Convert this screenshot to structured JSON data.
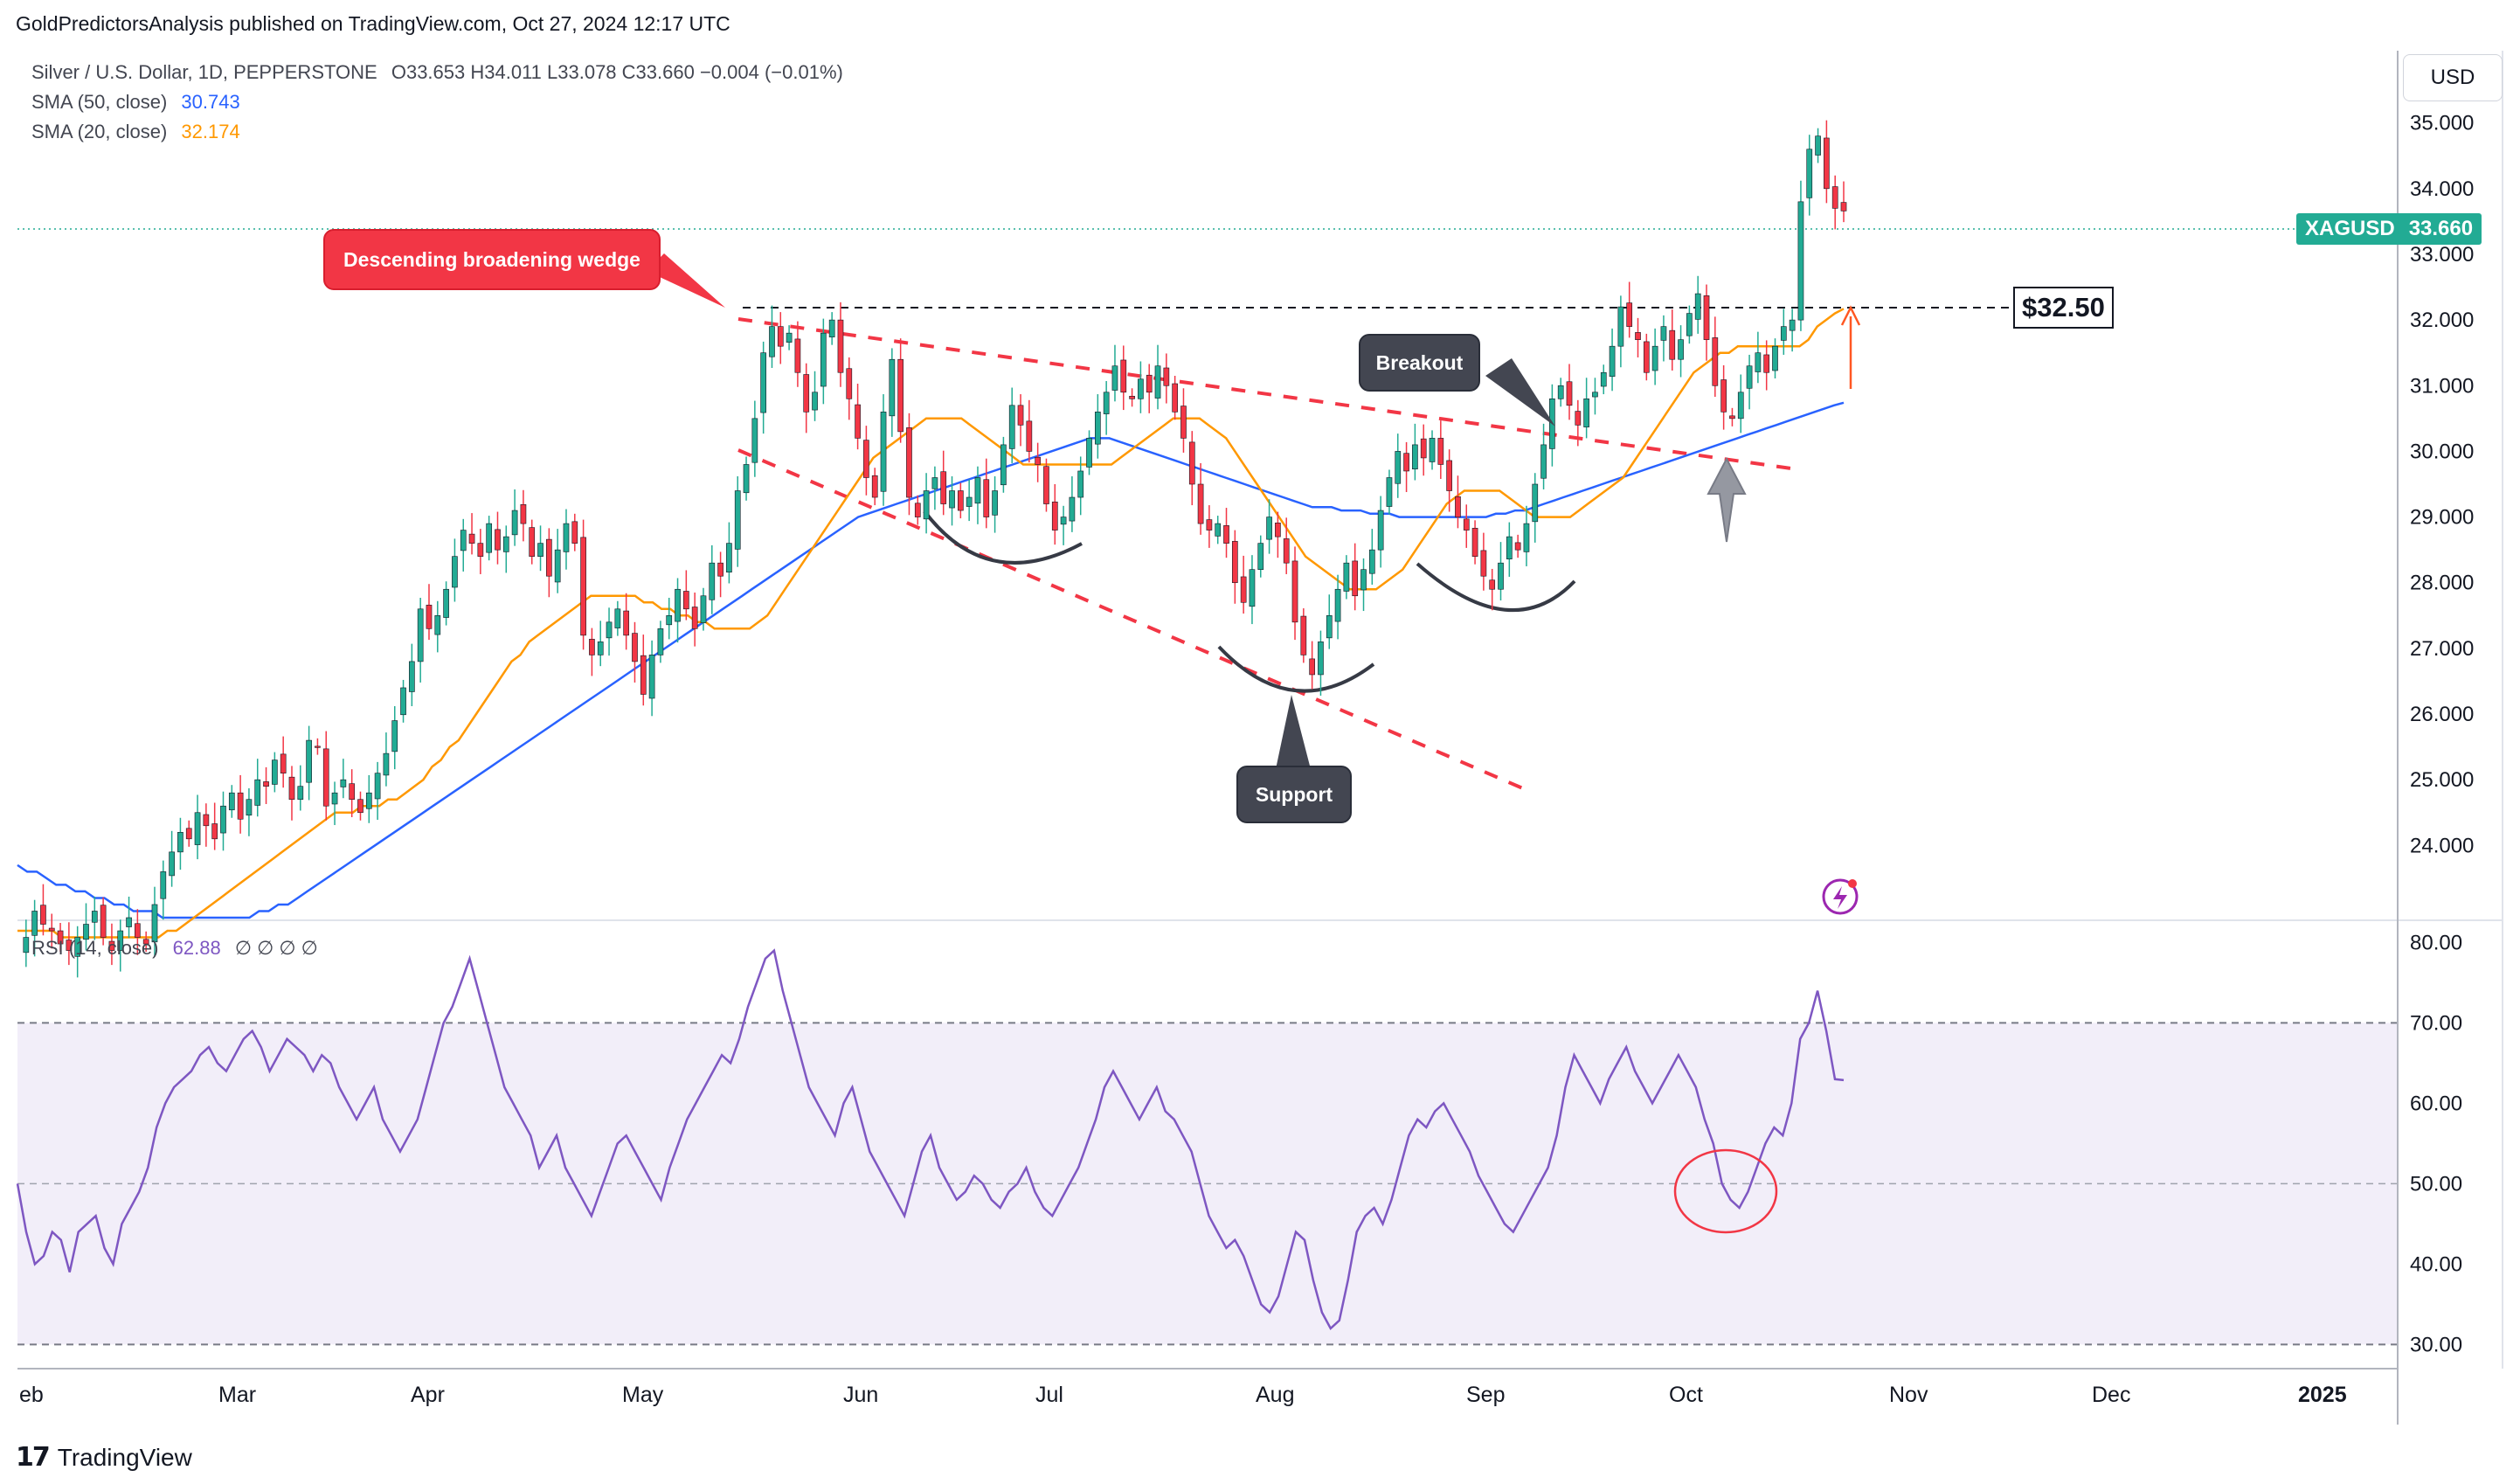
{
  "header": {
    "published": "GoldPredictorsAnalysis published on TradingView.com, Oct 27, 2024 12:17 UTC"
  },
  "legend": {
    "symbol_line": "Silver / U.S. Dollar, 1D, PEPPERSTONE",
    "ohlc": "O33.653  H34.011  L33.078  C33.660  −0.004 (−0.01%)",
    "sma50_label": "SMA (50, close)",
    "sma50_value": "30.743",
    "sma20_label": "SMA (20, close)",
    "sma20_value": "32.174",
    "rsi_label": "RSI (14, close)",
    "rsi_value": "62.88",
    "rsi_flags": "∅ ∅ ∅ ∅"
  },
  "colors": {
    "up": "#22ab94",
    "down": "#f23645",
    "sma50": "#2962ff",
    "sma20": "#ff9800",
    "rsi": "#7e57c2",
    "wedge": "#f23645"
  },
  "currency": "USD",
  "price_tag": {
    "symbol": "XAGUSD",
    "value": "33.660"
  },
  "annotations": {
    "wedge": "Descending broadening wedge",
    "breakout": "Breakout",
    "support": "Support",
    "level": "$32.50"
  },
  "footer": {
    "brand": "TradingView"
  },
  "chart_data": [
    {
      "type": "candlestick",
      "title": "Silver / U.S. Dollar, 1D, PEPPERSTONE",
      "x_ticks": [
        "eb",
        "Mar",
        "Apr",
        "May",
        "Jun",
        "Jul",
        "Aug",
        "Sep",
        "Oct",
        "Nov",
        "Dec",
        "2025"
      ],
      "y_ticks": [
        "24.000",
        "25.000",
        "26.000",
        "27.000",
        "28.000",
        "29.000",
        "30.000",
        "31.000",
        "32.000",
        "33.000",
        "34.000",
        "35.000"
      ],
      "ylim": [
        22.9,
        36.1
      ],
      "close_path": [
        22.4,
        22.6,
        23.0,
        22.8,
        22.7,
        22.5,
        22.4,
        22.6,
        22.8,
        23.0,
        22.6,
        22.4,
        22.7,
        22.9,
        22.6,
        22.5,
        23.1,
        23.6,
        23.9,
        24.2,
        24.1,
        24.5,
        24.3,
        24.1,
        24.6,
        24.8,
        24.4,
        24.7,
        25.0,
        24.9,
        25.3,
        25.1,
        24.7,
        24.9,
        25.6,
        25.5,
        24.6,
        24.8,
        25.0,
        24.7,
        24.5,
        24.8,
        25.1,
        25.4,
        25.9,
        26.4,
        26.8,
        27.6,
        27.3,
        27.5,
        27.9,
        28.4,
        28.8,
        28.6,
        28.4,
        28.9,
        28.5,
        28.7,
        29.1,
        28.9,
        28.4,
        28.6,
        28.1,
        28.5,
        28.9,
        28.6,
        27.2,
        26.9,
        27.1,
        27.4,
        27.6,
        27.2,
        26.8,
        26.3,
        26.9,
        27.3,
        27.5,
        27.9,
        27.6,
        27.3,
        27.8,
        28.3,
        28.1,
        28.6,
        29.4,
        29.8,
        30.5,
        31.5,
        31.9,
        31.6,
        31.8,
        31.2,
        30.6,
        30.9,
        31.8,
        32.0,
        31.2,
        30.8,
        30.2,
        29.6,
        29.3,
        30.6,
        31.4,
        30.3,
        29.3,
        29.0,
        29.4,
        29.6,
        29.2,
        29.4,
        29.1,
        29.3,
        29.6,
        29.0,
        29.4,
        30.1,
        30.7,
        30.4,
        30.0,
        29.8,
        29.2,
        28.8,
        29.0,
        29.3,
        29.7,
        30.2,
        30.6,
        30.9,
        31.3,
        30.9,
        30.8,
        31.1,
        30.9,
        31.3,
        31.0,
        30.6,
        30.2,
        29.5,
        28.9,
        28.8,
        28.9,
        28.6,
        28.0,
        27.7,
        28.2,
        28.6,
        29.0,
        28.7,
        28.3,
        27.4,
        26.9,
        26.6,
        27.1,
        27.5,
        27.9,
        28.3,
        27.8,
        28.2,
        28.5,
        29.1,
        29.6,
        30.0,
        29.7,
        30.1,
        29.9,
        30.2,
        29.8,
        29.4,
        29.0,
        28.8,
        28.4,
        28.1,
        27.9,
        28.3,
        28.7,
        28.5,
        28.9,
        29.5,
        30.1,
        30.8,
        31.0,
        30.7,
        30.4,
        30.8,
        30.9,
        31.2,
        31.6,
        32.2,
        31.9,
        31.7,
        31.2,
        31.6,
        31.9,
        31.4,
        31.7,
        32.1,
        32.4,
        31.7,
        31.0,
        30.6,
        30.5,
        30.9,
        31.3,
        31.5,
        31.2,
        31.6,
        31.9,
        32.0,
        33.8,
        34.6,
        34.8,
        34.0,
        33.7,
        33.66
      ],
      "sma20_path": [
        22.7,
        22.7,
        22.7,
        22.7,
        22.7,
        22.6,
        22.6,
        22.6,
        22.6,
        22.6,
        22.6,
        22.6,
        22.6,
        22.6,
        22.6,
        22.6,
        22.6,
        22.7,
        22.7,
        22.8,
        22.9,
        23.0,
        23.1,
        23.2,
        23.3,
        23.4,
        23.5,
        23.6,
        23.7,
        23.8,
        23.9,
        24.0,
        24.1,
        24.2,
        24.3,
        24.4,
        24.5,
        24.5,
        24.5,
        24.6,
        24.6,
        24.6,
        24.7,
        24.7,
        24.8,
        24.9,
        25.0,
        25.2,
        25.3,
        25.5,
        25.6,
        25.8,
        26.0,
        26.2,
        26.4,
        26.6,
        26.8,
        26.9,
        27.1,
        27.2,
        27.3,
        27.4,
        27.5,
        27.6,
        27.7,
        27.8,
        27.8,
        27.8,
        27.8,
        27.8,
        27.8,
        27.7,
        27.7,
        27.6,
        27.6,
        27.5,
        27.5,
        27.4,
        27.4,
        27.3,
        27.3,
        27.3,
        27.3,
        27.3,
        27.4,
        27.5,
        27.7,
        27.9,
        28.1,
        28.3,
        28.5,
        28.7,
        28.9,
        29.1,
        29.3,
        29.5,
        29.7,
        29.9,
        30.0,
        30.1,
        30.2,
        30.3,
        30.4,
        30.5,
        30.5,
        30.5,
        30.5,
        30.5,
        30.4,
        30.3,
        30.2,
        30.1,
        30.0,
        29.9,
        29.8,
        29.8,
        29.8,
        29.8,
        29.8,
        29.8,
        29.8,
        29.8,
        29.8,
        29.8,
        29.8,
        29.9,
        30.0,
        30.1,
        30.2,
        30.3,
        30.4,
        30.5,
        30.5,
        30.5,
        30.5,
        30.4,
        30.3,
        30.2,
        30.0,
        29.8,
        29.6,
        29.4,
        29.2,
        29.0,
        28.8,
        28.6,
        28.4,
        28.3,
        28.2,
        28.1,
        28.0,
        27.9,
        27.9,
        27.9,
        27.9,
        28.0,
        28.1,
        28.2,
        28.4,
        28.6,
        28.8,
        29.0,
        29.2,
        29.3,
        29.4,
        29.4,
        29.4,
        29.4,
        29.4,
        29.3,
        29.2,
        29.1,
        29.0,
        29.0,
        29.0,
        29.0,
        29.0,
        29.1,
        29.2,
        29.3,
        29.4,
        29.5,
        29.6,
        29.8,
        30.0,
        30.2,
        30.4,
        30.6,
        30.8,
        31.0,
        31.2,
        31.3,
        31.4,
        31.5,
        31.5,
        31.6,
        31.6,
        31.6,
        31.6,
        31.6,
        31.6,
        31.6,
        31.6,
        31.7,
        31.9,
        32.0,
        32.1,
        32.17
      ],
      "sma50_path": [
        23.7,
        23.6,
        23.6,
        23.5,
        23.4,
        23.4,
        23.3,
        23.3,
        23.2,
        23.2,
        23.1,
        23.1,
        23.0,
        23.0,
        23.0,
        22.9,
        22.9,
        22.9,
        22.9,
        22.9,
        22.9,
        22.9,
        22.9,
        22.9,
        22.9,
        23.0,
        23.0,
        23.1,
        23.1,
        23.2,
        23.3,
        23.4,
        23.5,
        23.6,
        23.7,
        23.8,
        23.9,
        24.0,
        24.1,
        24.2,
        24.3,
        24.4,
        24.5,
        24.6,
        24.7,
        24.8,
        24.9,
        25.0,
        25.1,
        25.2,
        25.3,
        25.4,
        25.5,
        25.6,
        25.7,
        25.8,
        25.9,
        26.0,
        26.1,
        26.2,
        26.3,
        26.4,
        26.5,
        26.6,
        26.7,
        26.8,
        26.9,
        27.0,
        27.1,
        27.2,
        27.3,
        27.4,
        27.5,
        27.6,
        27.7,
        27.8,
        27.9,
        28.0,
        28.1,
        28.2,
        28.3,
        28.4,
        28.5,
        28.6,
        28.7,
        28.8,
        28.9,
        29.0,
        29.05,
        29.1,
        29.15,
        29.2,
        29.25,
        29.3,
        29.35,
        29.4,
        29.45,
        29.5,
        29.55,
        29.6,
        29.65,
        29.7,
        29.75,
        29.8,
        29.85,
        29.9,
        29.95,
        30.0,
        30.05,
        30.1,
        30.15,
        30.2,
        30.2,
        30.2,
        30.15,
        30.1,
        30.05,
        30.0,
        29.95,
        29.9,
        29.85,
        29.8,
        29.75,
        29.7,
        29.65,
        29.6,
        29.55,
        29.5,
        29.45,
        29.4,
        29.35,
        29.3,
        29.25,
        29.2,
        29.15,
        29.15,
        29.15,
        29.1,
        29.1,
        29.1,
        29.05,
        29.05,
        29.05,
        29.0,
        29.0,
        29.0,
        29.0,
        29.0,
        29.0,
        29.0,
        29.0,
        29.0,
        29.0,
        29.05,
        29.05,
        29.1,
        29.1,
        29.15,
        29.2,
        29.25,
        29.3,
        29.35,
        29.4,
        29.45,
        29.5,
        29.55,
        29.6,
        29.65,
        29.7,
        29.75,
        29.8,
        29.85,
        29.9,
        29.95,
        30.0,
        30.05,
        30.1,
        30.15,
        30.2,
        30.25,
        30.3,
        30.35,
        30.4,
        30.45,
        30.5,
        30.55,
        30.6,
        30.65,
        30.7,
        30.74
      ]
    },
    {
      "type": "line",
      "title": "RSI (14, close)",
      "y_ticks": [
        "30.00",
        "40.00",
        "50.00",
        "60.00",
        "70.00",
        "80.00"
      ],
      "ylim": [
        27,
        82
      ],
      "bands": {
        "upper": 70,
        "lower": 30,
        "middle": 50
      },
      "values": [
        50,
        44,
        40,
        41,
        44,
        43,
        39,
        44,
        45,
        46,
        42,
        40,
        45,
        47,
        49,
        52,
        57,
        60,
        62,
        63,
        64,
        66,
        67,
        65,
        64,
        66,
        68,
        69,
        67,
        64,
        66,
        68,
        67,
        66,
        64,
        66,
        65,
        62,
        60,
        58,
        60,
        62,
        58,
        56,
        54,
        56,
        58,
        62,
        66,
        70,
        72,
        75,
        78,
        74,
        70,
        66,
        62,
        60,
        58,
        56,
        52,
        54,
        56,
        52,
        50,
        48,
        46,
        49,
        52,
        55,
        56,
        54,
        52,
        50,
        48,
        52,
        55,
        58,
        60,
        62,
        64,
        66,
        65,
        68,
        72,
        75,
        78,
        79,
        74,
        70,
        66,
        62,
        60,
        58,
        56,
        60,
        62,
        58,
        54,
        52,
        50,
        48,
        46,
        50,
        54,
        56,
        52,
        50,
        48,
        49,
        51,
        50,
        48,
        47,
        49,
        50,
        52,
        49,
        47,
        46,
        48,
        50,
        52,
        55,
        58,
        62,
        64,
        62,
        60,
        58,
        60,
        62,
        59,
        58,
        56,
        54,
        50,
        46,
        44,
        42,
        43,
        41,
        38,
        35,
        34,
        36,
        40,
        44,
        43,
        38,
        34,
        32,
        33,
        38,
        44,
        46,
        47,
        45,
        48,
        52,
        56,
        58,
        57,
        59,
        60,
        58,
        56,
        54,
        51,
        49,
        47,
        45,
        44,
        46,
        48,
        50,
        52,
        56,
        62,
        66,
        64,
        62,
        60,
        63,
        65,
        67,
        64,
        62,
        60,
        62,
        64,
        66,
        64,
        62,
        58,
        55,
        50,
        48,
        47,
        49,
        52,
        55,
        57,
        56,
        60,
        68,
        70,
        74,
        69,
        63,
        62.88
      ]
    }
  ]
}
